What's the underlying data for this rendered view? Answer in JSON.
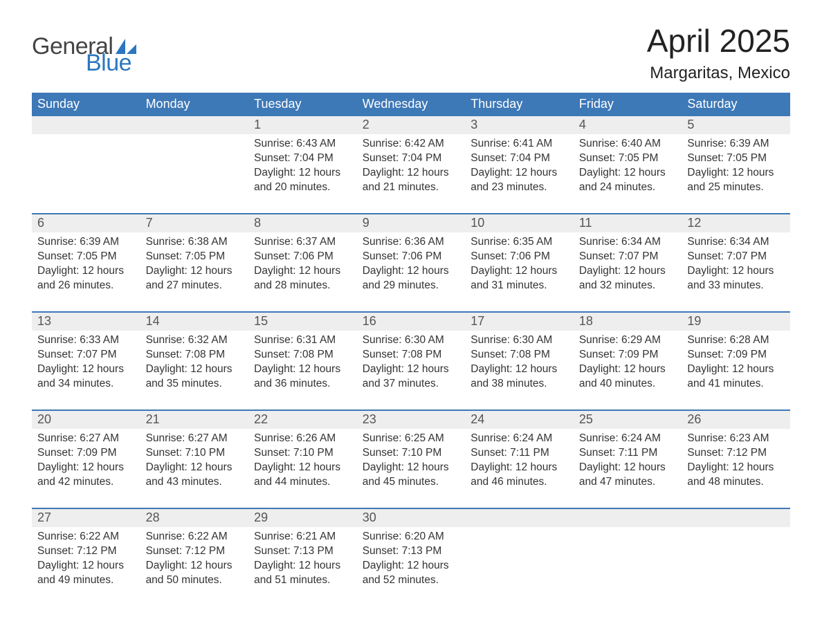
{
  "logo": {
    "word1": "General",
    "word2": "Blue"
  },
  "title": "April 2025",
  "location": "Margaritas, Mexico",
  "colors": {
    "header_blue": "#3d78b7",
    "grey_row": "#eeeeee",
    "row_separator": "#3d78b7",
    "logo_blue": "#2b76c0",
    "text": "#333333"
  },
  "weekdays": [
    "Sunday",
    "Monday",
    "Tuesday",
    "Wednesday",
    "Thursday",
    "Friday",
    "Saturday"
  ],
  "labels": {
    "sunrise": "Sunrise:",
    "sunset": "Sunset:",
    "daylight": "Daylight:"
  },
  "weeks": [
    [
      null,
      null,
      {
        "n": 1,
        "sr": "6:43 AM",
        "ss": "7:04 PM",
        "dl": "12 hours and 20 minutes."
      },
      {
        "n": 2,
        "sr": "6:42 AM",
        "ss": "7:04 PM",
        "dl": "12 hours and 21 minutes."
      },
      {
        "n": 3,
        "sr": "6:41 AM",
        "ss": "7:04 PM",
        "dl": "12 hours and 23 minutes."
      },
      {
        "n": 4,
        "sr": "6:40 AM",
        "ss": "7:05 PM",
        "dl": "12 hours and 24 minutes."
      },
      {
        "n": 5,
        "sr": "6:39 AM",
        "ss": "7:05 PM",
        "dl": "12 hours and 25 minutes."
      }
    ],
    [
      {
        "n": 6,
        "sr": "6:39 AM",
        "ss": "7:05 PM",
        "dl": "12 hours and 26 minutes."
      },
      {
        "n": 7,
        "sr": "6:38 AM",
        "ss": "7:05 PM",
        "dl": "12 hours and 27 minutes."
      },
      {
        "n": 8,
        "sr": "6:37 AM",
        "ss": "7:06 PM",
        "dl": "12 hours and 28 minutes."
      },
      {
        "n": 9,
        "sr": "6:36 AM",
        "ss": "7:06 PM",
        "dl": "12 hours and 29 minutes."
      },
      {
        "n": 10,
        "sr": "6:35 AM",
        "ss": "7:06 PM",
        "dl": "12 hours and 31 minutes."
      },
      {
        "n": 11,
        "sr": "6:34 AM",
        "ss": "7:07 PM",
        "dl": "12 hours and 32 minutes."
      },
      {
        "n": 12,
        "sr": "6:34 AM",
        "ss": "7:07 PM",
        "dl": "12 hours and 33 minutes."
      }
    ],
    [
      {
        "n": 13,
        "sr": "6:33 AM",
        "ss": "7:07 PM",
        "dl": "12 hours and 34 minutes."
      },
      {
        "n": 14,
        "sr": "6:32 AM",
        "ss": "7:08 PM",
        "dl": "12 hours and 35 minutes."
      },
      {
        "n": 15,
        "sr": "6:31 AM",
        "ss": "7:08 PM",
        "dl": "12 hours and 36 minutes."
      },
      {
        "n": 16,
        "sr": "6:30 AM",
        "ss": "7:08 PM",
        "dl": "12 hours and 37 minutes."
      },
      {
        "n": 17,
        "sr": "6:30 AM",
        "ss": "7:08 PM",
        "dl": "12 hours and 38 minutes."
      },
      {
        "n": 18,
        "sr": "6:29 AM",
        "ss": "7:09 PM",
        "dl": "12 hours and 40 minutes."
      },
      {
        "n": 19,
        "sr": "6:28 AM",
        "ss": "7:09 PM",
        "dl": "12 hours and 41 minutes."
      }
    ],
    [
      {
        "n": 20,
        "sr": "6:27 AM",
        "ss": "7:09 PM",
        "dl": "12 hours and 42 minutes."
      },
      {
        "n": 21,
        "sr": "6:27 AM",
        "ss": "7:10 PM",
        "dl": "12 hours and 43 minutes."
      },
      {
        "n": 22,
        "sr": "6:26 AM",
        "ss": "7:10 PM",
        "dl": "12 hours and 44 minutes."
      },
      {
        "n": 23,
        "sr": "6:25 AM",
        "ss": "7:10 PM",
        "dl": "12 hours and 45 minutes."
      },
      {
        "n": 24,
        "sr": "6:24 AM",
        "ss": "7:11 PM",
        "dl": "12 hours and 46 minutes."
      },
      {
        "n": 25,
        "sr": "6:24 AM",
        "ss": "7:11 PM",
        "dl": "12 hours and 47 minutes."
      },
      {
        "n": 26,
        "sr": "6:23 AM",
        "ss": "7:12 PM",
        "dl": "12 hours and 48 minutes."
      }
    ],
    [
      {
        "n": 27,
        "sr": "6:22 AM",
        "ss": "7:12 PM",
        "dl": "12 hours and 49 minutes."
      },
      {
        "n": 28,
        "sr": "6:22 AM",
        "ss": "7:12 PM",
        "dl": "12 hours and 50 minutes."
      },
      {
        "n": 29,
        "sr": "6:21 AM",
        "ss": "7:13 PM",
        "dl": "12 hours and 51 minutes."
      },
      {
        "n": 30,
        "sr": "6:20 AM",
        "ss": "7:13 PM",
        "dl": "12 hours and 52 minutes."
      },
      null,
      null,
      null
    ]
  ]
}
